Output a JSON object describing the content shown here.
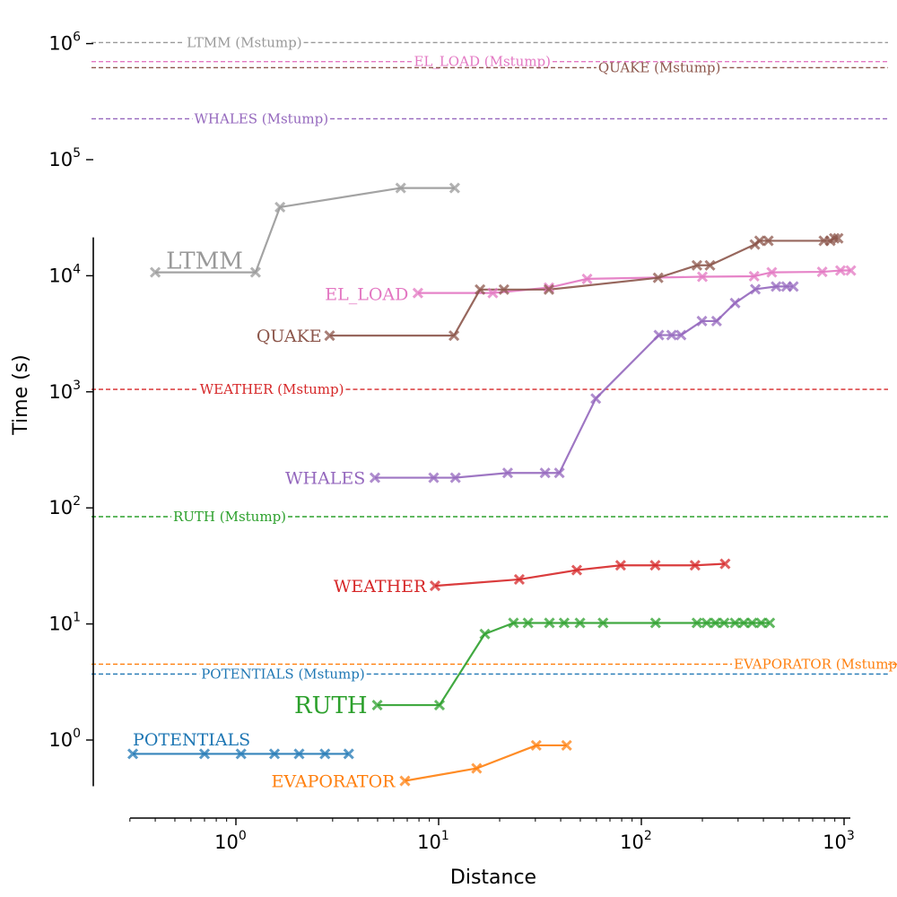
{
  "chart_data": {
    "type": "line",
    "xlabel": "Distance",
    "ylabel": "Time (s)",
    "xscale": "log",
    "yscale": "log",
    "xlim": [
      0.28,
      1100
    ],
    "ylim": [
      0.27,
      1200000
    ],
    "x_ticks": [
      {
        "value": 1,
        "label": "10",
        "exp": "0"
      },
      {
        "value": 10,
        "label": "10",
        "exp": "1"
      },
      {
        "value": 100,
        "label": "10",
        "exp": "2"
      },
      {
        "value": 1000,
        "label": "10",
        "exp": "3"
      }
    ],
    "y_ticks": [
      {
        "value": 1,
        "label": "10",
        "exp": "0"
      },
      {
        "value": 10,
        "label": "10",
        "exp": "1"
      },
      {
        "value": 100,
        "label": "10",
        "exp": "2"
      },
      {
        "value": 1000,
        "label": "10",
        "exp": "3"
      },
      {
        "value": 10000,
        "label": "10",
        "exp": "4"
      },
      {
        "value": 100000,
        "label": "10",
        "exp": "5"
      },
      {
        "value": 1000000,
        "label": "10",
        "exp": "6"
      }
    ],
    "y_axis_break": [
      15000,
      55000
    ],
    "grid": false,
    "legend": "none",
    "colors": {
      "LTMM": "#999999",
      "EL_LOAD": "#e377c2",
      "QUAKE": "#8c564b",
      "WHALES": "#9467bd",
      "WEATHER": "#d62728",
      "RUTH": "#2ca02c",
      "EVAPORATOR": "#ff7f0e",
      "POTENTIALS": "#1f77b4"
    },
    "series": [
      {
        "name": "LTMM",
        "color": "#999999",
        "label_size": 26,
        "x": [
          0.4,
          1.25,
          1.65,
          6.5,
          12
        ],
        "y": [
          10700,
          10700,
          39000,
          57000,
          57000
        ]
      },
      {
        "name": "EL_LOAD",
        "color": "#e377c2",
        "label_size": 19,
        "x": [
          7.9,
          18.5,
          35,
          54,
          200,
          360,
          440,
          780,
          960,
          1080
        ],
        "y": [
          7100,
          7100,
          7900,
          9400,
          9800,
          9900,
          10700,
          10800,
          11100,
          11100
        ]
      },
      {
        "name": "QUAKE",
        "color": "#8c564b",
        "label_size": 19,
        "x": [
          2.9,
          11.9,
          16,
          21,
          35,
          121,
          188,
          218,
          363,
          383,
          423,
          795,
          855,
          895,
          935
        ],
        "y": [
          3050,
          3050,
          7600,
          7600,
          7600,
          9600,
          12300,
          12300,
          18600,
          20000,
          20000,
          20000,
          20000,
          21000,
          21000
        ]
      },
      {
        "name": "WHALES",
        "color": "#9467bd",
        "label_size": 19,
        "x": [
          4.85,
          9.45,
          12.1,
          21.9,
          33.5,
          39.4,
          59.6,
          122,
          141,
          157,
          199,
          235,
          290,
          365,
          462,
          520,
          562
        ],
        "y": [
          182,
          182,
          182,
          200,
          200,
          200,
          875,
          3080,
          3080,
          3080,
          4070,
          4070,
          5820,
          7650,
          8080,
          8080,
          8080
        ]
      },
      {
        "name": "WEATHER",
        "color": "#d62728",
        "label_size": 19,
        "x": [
          9.6,
          25,
          48,
          79,
          117,
          184,
          259
        ],
        "y": [
          21.3,
          24.2,
          29.1,
          32,
          32,
          32,
          33
        ]
      },
      {
        "name": "RUTH",
        "color": "#2ca02c",
        "label_size": 26,
        "x": [
          4.98,
          10.1,
          16.9,
          23.4,
          27.6,
          35.2,
          41.6,
          49.8,
          64.7,
          117.5,
          188,
          210,
          232,
          256,
          290,
          320,
          352,
          390,
          430
        ],
        "y": [
          2.0,
          2.0,
          8.2,
          10.2,
          10.2,
          10.2,
          10.2,
          10.2,
          10.2,
          10.2,
          10.2,
          10.2,
          10.2,
          10.2,
          10.2,
          10.2,
          10.2,
          10.2,
          10.2
        ]
      },
      {
        "name": "EVAPORATOR",
        "color": "#ff7f0e",
        "label_size": 19,
        "x": [
          6.82,
          15.4,
          30.3,
          42.8
        ],
        "y": [
          0.445,
          0.57,
          0.9,
          0.9
        ]
      },
      {
        "name": "POTENTIALS",
        "color": "#1f77b4",
        "label_size": 19,
        "x": [
          0.31,
          0.7,
          1.06,
          1.55,
          2.05,
          2.75,
          3.6
        ],
        "y": [
          0.76,
          0.76,
          0.76,
          0.76,
          0.76,
          0.76,
          0.76
        ]
      }
    ],
    "reference_lines": [
      {
        "name": "LTMM",
        "label": "LTMM (Mstump)",
        "color": "#999999",
        "y": 1020000,
        "label_x": 0.56
      },
      {
        "name": "EL_LOAD",
        "label": "EL_LOAD (Mstump)",
        "color": "#e377c2",
        "y": 700000,
        "label_x": 7.4
      },
      {
        "name": "QUAKE",
        "label": "QUAKE (Mstump)",
        "color": "#8c564b",
        "y": 620000,
        "label_x": 60
      },
      {
        "name": "WHALES",
        "label": "WHALES (Mstump)",
        "color": "#9467bd",
        "y": 225000,
        "label_x": 0.61
      },
      {
        "name": "WEATHER",
        "label": "WEATHER (Mstump)",
        "color": "#d62728",
        "y": 1050,
        "label_x": 0.65
      },
      {
        "name": "RUTH",
        "label": "RUTH (Mstump)",
        "color": "#2ca02c",
        "y": 84,
        "label_x": 0.48
      },
      {
        "name": "EVAPORATOR",
        "label": "EVAPORATOR (Mstump)",
        "color": "#ff7f0e",
        "y": 4.5,
        "label_x": 280
      },
      {
        "name": "POTENTIALS",
        "label": "POTENTIALS (Mstump)",
        "color": "#1f77b4",
        "y": 3.7,
        "label_x": 0.66
      }
    ],
    "series_labels": [
      {
        "name": "LTMM",
        "text": "LTMM",
        "x": 0.7,
        "y": 13500,
        "anchor": "middle"
      },
      {
        "name": "EL_LOAD",
        "text": "EL_LOAD",
        "x": 7.1,
        "y": 7000,
        "anchor": "end"
      },
      {
        "name": "QUAKE",
        "text": "QUAKE",
        "x": 2.65,
        "y": 3050,
        "anchor": "end"
      },
      {
        "name": "WHALES",
        "text": "WHALES",
        "x": 4.35,
        "y": 182,
        "anchor": "end"
      },
      {
        "name": "WEATHER",
        "text": "WEATHER",
        "x": 8.7,
        "y": 21.3,
        "anchor": "end"
      },
      {
        "name": "RUTH",
        "text": "RUTH",
        "x": 4.45,
        "y": 2.0,
        "anchor": "end"
      },
      {
        "name": "EVAPORATOR",
        "text": "EVAPORATOR",
        "x": 6.1,
        "y": 0.445,
        "anchor": "end"
      },
      {
        "name": "POTENTIALS",
        "text": "POTENTIALS",
        "x": 0.31,
        "y": 1.02,
        "anchor": "start"
      }
    ]
  }
}
